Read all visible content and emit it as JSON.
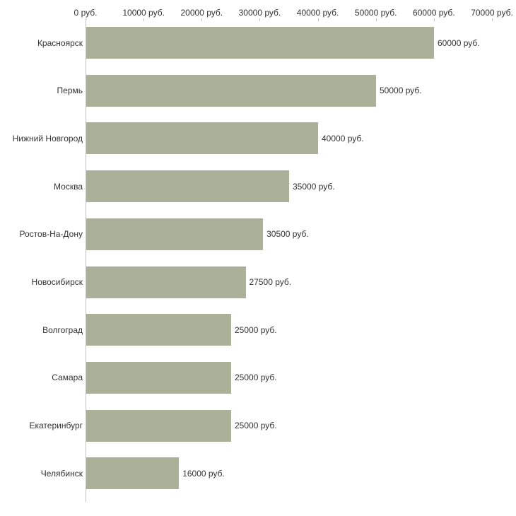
{
  "chart_data": {
    "type": "bar",
    "orientation": "horizontal",
    "title": "",
    "xlabel": "",
    "ylabel": "",
    "xlim": [
      0,
      70000
    ],
    "grid": false,
    "legend": false,
    "bar_color": "#abb198",
    "axis_color": "#c3c3c3",
    "text_color": "#333333",
    "x_axis_ticks": [
      "0 руб.",
      "10000 руб.",
      "20000 руб.",
      "30000 руб.",
      "40000 руб.",
      "50000 руб.",
      "60000 руб.",
      "70000 руб."
    ],
    "categories": [
      "Красноярск",
      "Пермь",
      "Нижний Новгород",
      "Москва",
      "Ростов-На-Дону",
      "Новосибирск",
      "Волгоград",
      "Самара",
      "Екатеринбург",
      "Челябинск"
    ],
    "values": [
      60000,
      50000,
      40000,
      35000,
      30500,
      27500,
      25000,
      25000,
      25000,
      16000
    ],
    "value_labels": [
      "60000 руб.",
      "50000 руб.",
      "40000 руб.",
      "35000 руб.",
      "30500 руб.",
      "27500 руб.",
      "25000 руб.",
      "25000 руб.",
      "25000 руб.",
      "16000 руб."
    ]
  }
}
